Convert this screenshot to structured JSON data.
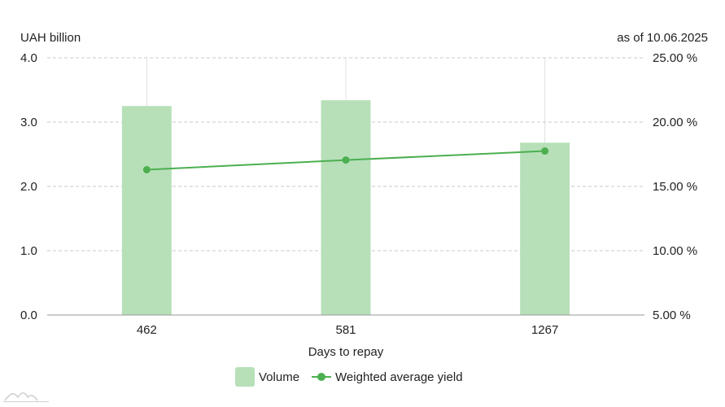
{
  "chart_data": {
    "type": "bar",
    "title": "",
    "left_unit": "UAH billion",
    "date_note": "as of 10.06.2025",
    "xlabel": "Days to repay",
    "categories": [
      "462",
      "581",
      "1267"
    ],
    "y_left": {
      "min": 0,
      "max": 4,
      "ticks": [
        "0.0",
        "1.0",
        "2.0",
        "3.0",
        "4.0"
      ]
    },
    "y_right": {
      "min": 5,
      "max": 25,
      "ticks": [
        "5.00 %",
        "10.00 %",
        "15.00 %",
        "20.00 %",
        "25.00 %"
      ]
    },
    "series": [
      {
        "name": "Volume",
        "type": "bar",
        "axis": "left",
        "values": [
          3.25,
          3.34,
          2.68
        ],
        "color": "#b7e0b9"
      },
      {
        "name": "Weighted average yield",
        "type": "line",
        "axis": "right",
        "values": [
          16.3,
          17.05,
          17.75
        ],
        "color": "#4caf50"
      }
    ],
    "grid": true,
    "legend": "bottom-center"
  }
}
